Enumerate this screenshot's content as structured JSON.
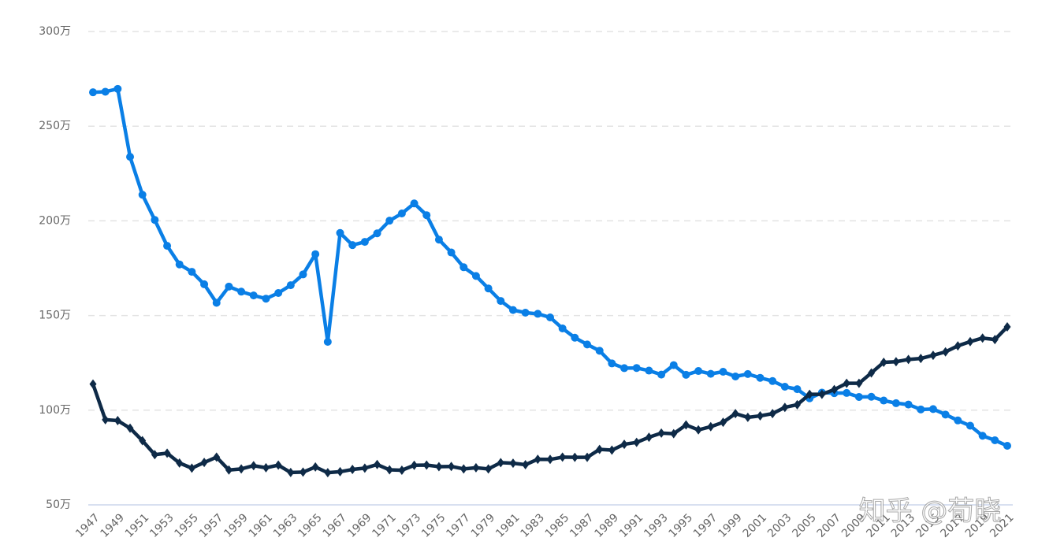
{
  "chart_data": {
    "type": "line",
    "categories": [
      "1947",
      null,
      "1949",
      null,
      "1951",
      null,
      "1953",
      null,
      "1955",
      null,
      "1957",
      null,
      "1959",
      null,
      "1961",
      null,
      "1963",
      null,
      "1965",
      null,
      "1967",
      null,
      "1969",
      null,
      "1971",
      null,
      "1973",
      null,
      "1975",
      null,
      "1977",
      null,
      "1979",
      null,
      "1981",
      null,
      "1983",
      null,
      "1985",
      null,
      "1987",
      null,
      "1989",
      null,
      "1991",
      null,
      "1993",
      null,
      "1995",
      null,
      "1997",
      null,
      "1999",
      null,
      "2001",
      null,
      "2003",
      null,
      "2005",
      null,
      "2007",
      null,
      "2009",
      null,
      "2011",
      null,
      "2013",
      null,
      "2015",
      null,
      "2017",
      null,
      "2019",
      null,
      "2021"
    ],
    "series": [
      {
        "color": "#0a7fe6",
        "marker": "circle",
        "values": [
          267.9,
          268.2,
          269.7,
          233.8,
          213.8,
          200.5,
          186.8,
          177.0,
          173.1,
          166.5,
          156.7,
          165.3,
          162.6,
          160.6,
          158.9,
          161.9,
          166.0,
          171.7,
          182.4,
          136.1,
          193.6,
          187.2,
          188.9,
          193.4,
          200.1,
          203.9,
          209.2,
          203.0,
          190.1,
          183.3,
          175.5,
          170.9,
          164.3,
          157.7,
          152.9,
          151.5,
          150.9,
          149.0,
          143.2,
          138.3,
          134.7,
          131.4,
          124.7,
          122.2,
          122.3,
          120.9,
          118.8,
          123.8,
          118.7,
          120.7,
          119.2,
          120.3,
          117.8,
          119.1,
          117.1,
          115.4,
          112.4,
          111.1,
          106.3,
          109.3,
          109.0,
          109.1,
          107.0,
          107.1,
          105.1,
          103.7,
          103.0,
          100.4,
          100.6,
          97.7,
          94.6,
          91.8,
          86.5,
          84.1,
          81.2
        ]
      },
      {
        "color": "#0e2a47",
        "marker": "diamond",
        "values": [
          113.8,
          95.0,
          94.5,
          90.5,
          83.9,
          76.5,
          77.3,
          72.1,
          69.4,
          72.4,
          75.2,
          68.4,
          69.0,
          70.7,
          69.6,
          71.0,
          67.1,
          67.3,
          70.0,
          67.0,
          67.5,
          68.7,
          69.4,
          71.3,
          68.5,
          68.3,
          70.9,
          71.0,
          70.2,
          70.3,
          69.0,
          69.6,
          69.0,
          72.3,
          72.0,
          71.2,
          74.1,
          74.0,
          75.2,
          75.1,
          75.1,
          79.3,
          78.9,
          82.0,
          83.0,
          85.7,
          87.9,
          87.6,
          92.2,
          89.6,
          91.3,
          93.6,
          98.2,
          96.2,
          97.0,
          98.2,
          101.5,
          102.9,
          108.4,
          108.4,
          110.9,
          114.2,
          114.2,
          119.7,
          125.3,
          125.6,
          126.8,
          127.3,
          129.0,
          130.8,
          134.0,
          136.2,
          138.1,
          137.3,
          144.0
        ]
      }
    ],
    "ylim": [
      50,
      300
    ],
    "yticks": [
      {
        "value": 50,
        "label": "50万"
      },
      {
        "value": 100,
        "label": "100万"
      },
      {
        "value": 150,
        "label": "150万"
      },
      {
        "value": 200,
        "label": "200万"
      },
      {
        "value": 250,
        "label": "250万"
      },
      {
        "value": 300,
        "label": "300万"
      }
    ],
    "grid": true,
    "watermark": "知乎 @荀晓"
  }
}
